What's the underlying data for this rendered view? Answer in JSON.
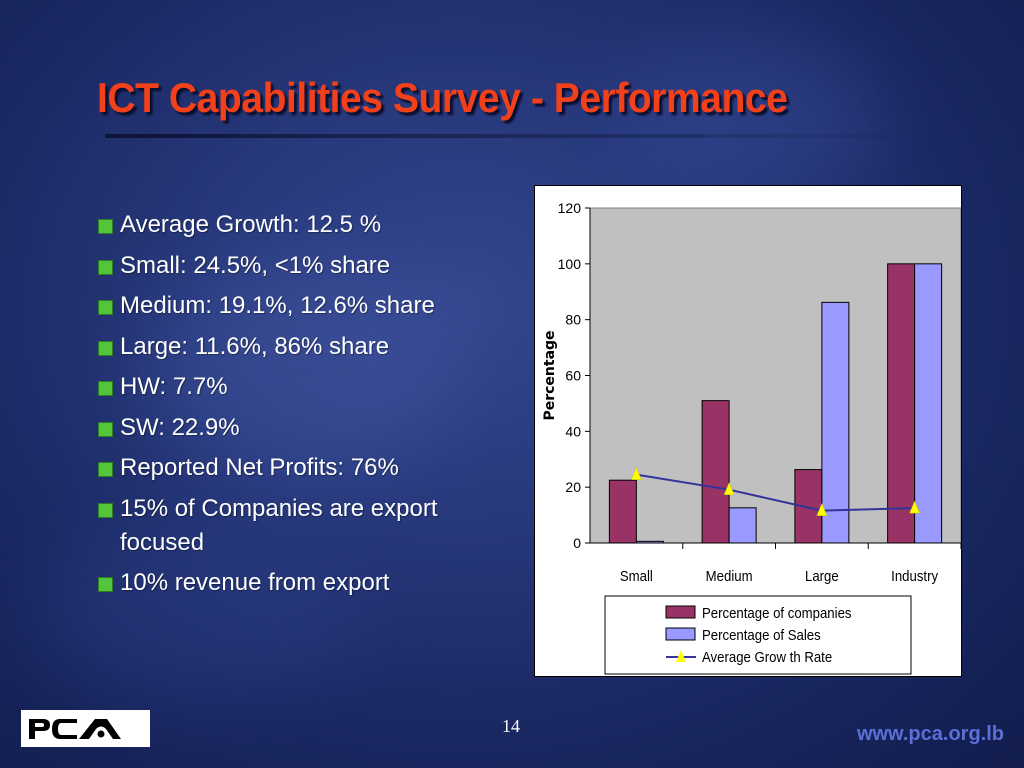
{
  "slide": {
    "title": "ICT Capabilities Survey - Performance",
    "page_number": "14",
    "website": "www.pca.org.lb",
    "logo_text": "PCA",
    "colors": {
      "title": "#f2401a",
      "bullet": "#52c53a",
      "website": "#5b6fd6"
    }
  },
  "bullets": [
    "Average Growth: 12.5 %",
    "Small: 24.5%, <1% share",
    "Medium: 19.1%, 12.6% share",
    "Large: 11.6%, 86% share",
    "HW: 7.7%",
    "SW: 22.9%",
    "Reported Net Profits: 76%",
    "15% of Companies are export focused",
    "10% revenue from export"
  ],
  "chart_data": {
    "type": "bar",
    "categories": [
      "Small",
      "Medium",
      "Large",
      "Industry"
    ],
    "series": [
      {
        "name": "Percentage of companies",
        "type": "bar",
        "color": "#993366",
        "values": [
          22.5,
          51,
          26.3,
          100
        ]
      },
      {
        "name": "Percentage of Sales",
        "type": "bar",
        "color": "#9999ff",
        "values": [
          0.6,
          12.6,
          86.2,
          100
        ]
      },
      {
        "name": "Average Grow th Rate",
        "type": "line",
        "color": "#333399",
        "marker_color": "#ffff00",
        "values": [
          24.5,
          19.1,
          11.6,
          12.5
        ]
      }
    ],
    "ylabel": "Percentage",
    "ylim": [
      0,
      120
    ],
    "yticks": [
      "0",
      "20",
      "40",
      "60",
      "80",
      "100",
      "120"
    ],
    "plot_background": "#c0c0c0",
    "grid": false,
    "legend": "bottom"
  }
}
